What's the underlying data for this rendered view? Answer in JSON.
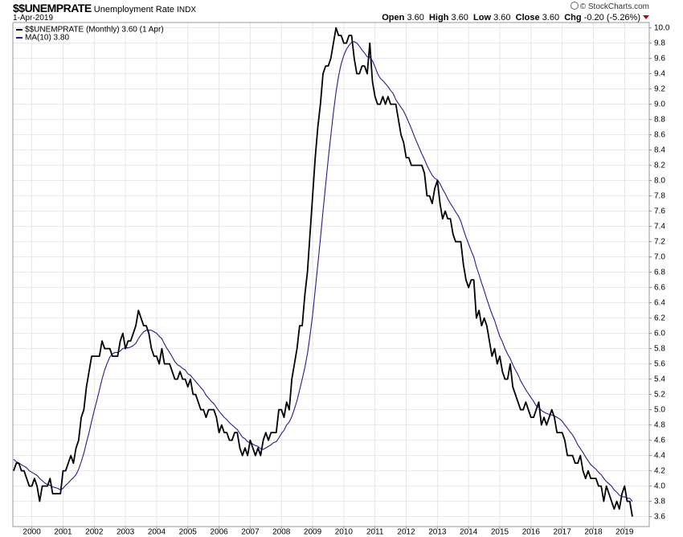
{
  "chart_data": {
    "type": "line",
    "title": "$$UNEMPRATE",
    "subtitle": "Unemployment Rate",
    "exchange": "INDX",
    "date": "1-Apr-2019",
    "copyright": "© StockCharts.com",
    "quote": [
      {
        "label": "Open",
        "value": "3.60"
      },
      {
        "label": "High",
        "value": "3.60"
      },
      {
        "label": "Low",
        "value": "3.60"
      },
      {
        "label": "Close",
        "value": "3.60"
      },
      {
        "label": "Chg",
        "value": "-0.20 (-5.26%)"
      }
    ],
    "categories": [
      null,
      null,
      null,
      null,
      null,
      null,
      null,
      "2000",
      null,
      null,
      null,
      null,
      null,
      null,
      null,
      null,
      null,
      null,
      null,
      "2001",
      null,
      null,
      null,
      null,
      null,
      null,
      null,
      null,
      null,
      null,
      null,
      "2002",
      null,
      null,
      null,
      null,
      null,
      null,
      null,
      null,
      null,
      null,
      null,
      "2003",
      null,
      null,
      null,
      null,
      null,
      null,
      null,
      null,
      null,
      null,
      null,
      "2004",
      null,
      null,
      null,
      null,
      null,
      null,
      null,
      null,
      null,
      null,
      null,
      "2005",
      null,
      null,
      null,
      null,
      null,
      null,
      null,
      null,
      null,
      null,
      null,
      "2006",
      null,
      null,
      null,
      null,
      null,
      null,
      null,
      null,
      null,
      null,
      null,
      "2007",
      null,
      null,
      null,
      null,
      null,
      null,
      null,
      null,
      null,
      null,
      null,
      "2008",
      null,
      null,
      null,
      null,
      null,
      null,
      null,
      null,
      null,
      null,
      null,
      "2009",
      null,
      null,
      null,
      null,
      null,
      null,
      null,
      null,
      null,
      null,
      null,
      "2010",
      null,
      null,
      null,
      null,
      null,
      null,
      null,
      null,
      null,
      null,
      null,
      "2011",
      null,
      null,
      null,
      null,
      null,
      null,
      null,
      null,
      null,
      null,
      null,
      "2012",
      null,
      null,
      null,
      null,
      null,
      null,
      null,
      null,
      null,
      null,
      null,
      "2013",
      null,
      null,
      null,
      null,
      null,
      null,
      null,
      null,
      null,
      null,
      null,
      "2014",
      null,
      null,
      null,
      null,
      null,
      null,
      null,
      null,
      null,
      null,
      null,
      "2015",
      null,
      null,
      null,
      null,
      null,
      null,
      null,
      null,
      null,
      null,
      null,
      "2016",
      null,
      null,
      null,
      null,
      null,
      null,
      null,
      null,
      null,
      null,
      null,
      "2017",
      null,
      null,
      null,
      null,
      null,
      null,
      null,
      null,
      null,
      null,
      null,
      "2018",
      null,
      null,
      null,
      null,
      null,
      null,
      null,
      null,
      null,
      null,
      null,
      "2019",
      null,
      null,
      null
    ],
    "series": [
      {
        "name": "$$UNEMPRATE (Monthly) 3.60 (1 Apr)",
        "color": "#000000",
        "values": [
          4.2,
          4.3,
          4.3,
          4.2,
          4.2,
          4.1,
          4.0,
          4.0,
          4.1,
          4.0,
          3.8,
          4.0,
          4.0,
          4.0,
          4.1,
          3.9,
          3.9,
          3.9,
          3.9,
          4.2,
          4.2,
          4.3,
          4.4,
          4.3,
          4.5,
          4.6,
          4.9,
          5.0,
          5.3,
          5.5,
          5.7,
          5.7,
          5.7,
          5.7,
          5.9,
          5.8,
          5.8,
          5.8,
          5.7,
          5.7,
          5.7,
          5.9,
          6.0,
          5.8,
          5.9,
          5.9,
          6.0,
          6.1,
          6.3,
          6.2,
          6.1,
          6.1,
          6.0,
          5.8,
          5.7,
          5.7,
          5.6,
          5.8,
          5.6,
          5.6,
          5.6,
          5.5,
          5.4,
          5.4,
          5.5,
          5.4,
          5.4,
          5.3,
          5.4,
          5.2,
          5.2,
          5.1,
          5.0,
          5.0,
          4.9,
          5.0,
          5.0,
          5.0,
          4.9,
          4.7,
          4.8,
          4.7,
          4.7,
          4.6,
          4.6,
          4.7,
          4.7,
          4.5,
          4.4,
          4.5,
          4.4,
          4.6,
          4.5,
          4.4,
          4.5,
          4.4,
          4.6,
          4.7,
          4.6,
          4.7,
          4.7,
          4.7,
          5.0,
          5.0,
          4.9,
          5.1,
          5.0,
          5.4,
          5.6,
          5.8,
          6.1,
          6.1,
          6.5,
          6.8,
          7.3,
          7.8,
          8.3,
          8.7,
          9.0,
          9.4,
          9.5,
          9.5,
          9.6,
          9.8,
          10.0,
          9.9,
          9.9,
          9.8,
          9.8,
          9.9,
          9.9,
          9.6,
          9.4,
          9.4,
          9.5,
          9.5,
          9.4,
          9.8,
          9.3,
          9.1,
          9.0,
          9.0,
          9.1,
          9.0,
          9.1,
          9.0,
          9.0,
          9.0,
          8.8,
          8.6,
          8.5,
          8.3,
          8.3,
          8.2,
          8.2,
          8.2,
          8.2,
          8.2,
          8.1,
          7.8,
          7.8,
          7.7,
          7.9,
          8.0,
          7.7,
          7.5,
          7.6,
          7.5,
          7.5,
          7.3,
          7.2,
          7.2,
          7.2,
          6.9,
          6.7,
          6.6,
          6.7,
          6.7,
          6.2,
          6.3,
          6.1,
          6.2,
          6.1,
          5.9,
          5.7,
          5.8,
          5.6,
          5.7,
          5.5,
          5.4,
          5.4,
          5.6,
          5.3,
          5.2,
          5.1,
          5.0,
          5.0,
          5.1,
          5.0,
          4.9,
          4.9,
          5.0,
          5.1,
          4.8,
          4.9,
          4.8,
          4.9,
          5.0,
          4.9,
          4.7,
          4.7,
          4.7,
          4.6,
          4.4,
          4.4,
          4.4,
          4.3,
          4.3,
          4.4,
          4.2,
          4.1,
          4.2,
          4.1,
          4.1,
          4.1,
          4.0,
          4.0,
          3.8,
          4.0,
          3.9,
          3.8,
          3.7,
          3.8,
          3.7,
          3.9,
          4.0,
          3.8,
          3.8,
          3.6
        ]
      },
      {
        "name": "MA(10) 3.80",
        "color": "#1f1f8f",
        "values": [
          4.35,
          4.32,
          4.3,
          4.28,
          4.26,
          4.24,
          4.2,
          4.18,
          4.16,
          4.14,
          4.1,
          4.07,
          4.04,
          4.02,
          4.01,
          3.99,
          3.98,
          3.97,
          3.95,
          3.97,
          4.01,
          4.04,
          4.08,
          4.11,
          4.15,
          4.22,
          4.32,
          4.43,
          4.57,
          4.7,
          4.85,
          4.99,
          5.12,
          5.26,
          5.4,
          5.52,
          5.61,
          5.69,
          5.73,
          5.75,
          5.75,
          5.77,
          5.8,
          5.81,
          5.81,
          5.82,
          5.84,
          5.87,
          5.93,
          5.98,
          6.02,
          6.04,
          6.04,
          6.04,
          6.02,
          6.0,
          5.96,
          5.93,
          5.86,
          5.8,
          5.75,
          5.69,
          5.63,
          5.59,
          5.57,
          5.54,
          5.52,
          5.47,
          5.45,
          5.41,
          5.37,
          5.33,
          5.29,
          5.25,
          5.19,
          5.15,
          5.11,
          5.08,
          5.03,
          4.98,
          4.94,
          4.9,
          4.87,
          4.83,
          4.8,
          4.77,
          4.74,
          4.69,
          4.64,
          4.62,
          4.58,
          4.57,
          4.55,
          4.53,
          4.52,
          4.49,
          4.48,
          4.5,
          4.52,
          4.54,
          4.57,
          4.58,
          4.63,
          4.69,
          4.73,
          4.8,
          4.84,
          4.91,
          5.01,
          5.12,
          5.26,
          5.4,
          5.55,
          5.73,
          5.97,
          6.24,
          6.57,
          6.9,
          7.24,
          7.6,
          7.94,
          8.28,
          8.59,
          8.89,
          9.16,
          9.37,
          9.53,
          9.64,
          9.72,
          9.77,
          9.81,
          9.82,
          9.8,
          9.76,
          9.71,
          9.67,
          9.62,
          9.62,
          9.57,
          9.49,
          9.4,
          9.34,
          9.31,
          9.27,
          9.23,
          9.18,
          9.14,
          9.06,
          9.01,
          8.96,
          8.91,
          8.84,
          8.76,
          8.68,
          8.59,
          8.51,
          8.43,
          8.35,
          8.28,
          8.2,
          8.13,
          8.07,
          8.03,
          8.01,
          7.96,
          7.89,
          7.83,
          7.76,
          7.7,
          7.65,
          7.59,
          7.54,
          7.47,
          7.36,
          7.26,
          7.17,
          7.08,
          7.0,
          6.87,
          6.77,
          6.66,
          6.56,
          6.45,
          6.35,
          6.25,
          6.17,
          6.06,
          5.96,
          5.89,
          5.8,
          5.73,
          5.67,
          5.59,
          5.52,
          5.46,
          5.38,
          5.32,
          5.26,
          5.21,
          5.16,
          5.11,
          5.05,
          5.03,
          4.99,
          4.97,
          4.95,
          4.94,
          4.93,
          4.92,
          4.9,
          4.88,
          4.85,
          4.8,
          4.76,
          4.71,
          4.67,
          4.61,
          4.54,
          4.49,
          4.44,
          4.38,
          4.33,
          4.28,
          4.25,
          4.22,
          4.18,
          4.15,
          4.1,
          4.06,
          4.03,
          4.0,
          3.95,
          3.92,
          3.88,
          3.86,
          3.86,
          3.84,
          3.84,
          3.8
        ]
      }
    ],
    "ylim": [
      3.47,
      10.07
    ],
    "yticks": [
      3.6,
      3.8,
      {
        "value": 4,
        "label": "4.0"
      },
      4.2,
      4.4,
      4.6,
      4.8,
      {
        "value": 5,
        "label": "5.0"
      },
      5.2,
      5.4,
      5.6,
      5.8,
      {
        "value": 6,
        "label": "6.0"
      },
      6.2,
      6.4,
      6.6,
      6.8,
      {
        "value": 7,
        "label": "7.0"
      },
      7.2,
      7.4,
      7.6,
      7.8,
      {
        "value": 8,
        "label": "8.0"
      },
      8.2,
      8.4,
      8.6,
      8.8,
      {
        "value": 9,
        "label": "9.0"
      },
      9.2,
      9.4,
      9.6,
      9.8,
      {
        "value": 10,
        "label": "10.0"
      }
    ],
    "grid": true,
    "legend": "top-left"
  }
}
